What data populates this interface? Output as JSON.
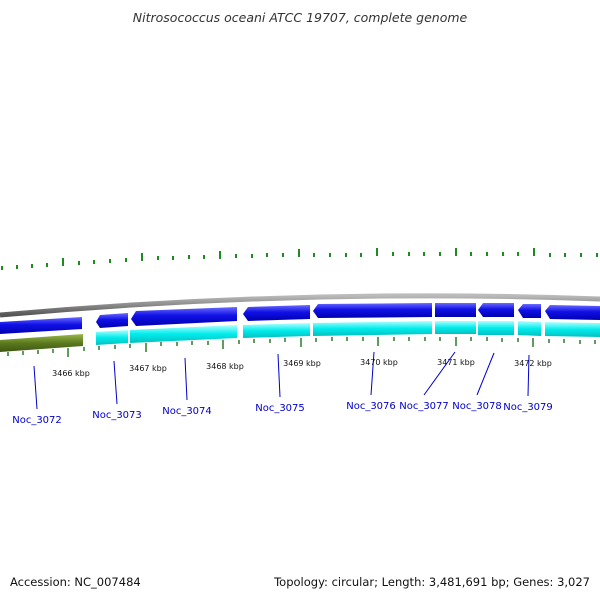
{
  "title": "Nitrosococcus oceani ATCC 19707, complete genome",
  "footer": {
    "accession": "Accession: NC_007484",
    "summary": "Topology: circular; Length: 3,481,691 bp; Genes: 3,027"
  },
  "colors": {
    "backbone": "#888888",
    "forward_gene": "#1010e6",
    "forward_gene_light": "#6a6aff",
    "reverse_gene": "#00e8e8",
    "reverse_gene_light": "#aaffff",
    "other_feature": "#5a7a1e",
    "tick": "#2a7a2a",
    "gc_tick": "#1f8a1f",
    "label": "#0000cc"
  },
  "axis_labels": [
    {
      "text": "3466 kbp",
      "kbp": 3466
    },
    {
      "text": "3467 kbp",
      "kbp": 3467
    },
    {
      "text": "3468 kbp",
      "kbp": 3468
    },
    {
      "text": "3469 kbp",
      "kbp": 3469
    },
    {
      "text": "3470 kbp",
      "kbp": 3470
    },
    {
      "text": "3471 kbp",
      "kbp": 3471
    },
    {
      "text": "3472 kbp",
      "kbp": 3472
    }
  ],
  "gene_labels": [
    {
      "text": "Noc_3072"
    },
    {
      "text": "Noc_3073"
    },
    {
      "text": "Noc_3074"
    },
    {
      "text": "Noc_3075"
    },
    {
      "text": "Noc_3076"
    },
    {
      "text": "Noc_3077"
    },
    {
      "text": "Noc_3078"
    },
    {
      "text": "Noc_3079"
    }
  ]
}
